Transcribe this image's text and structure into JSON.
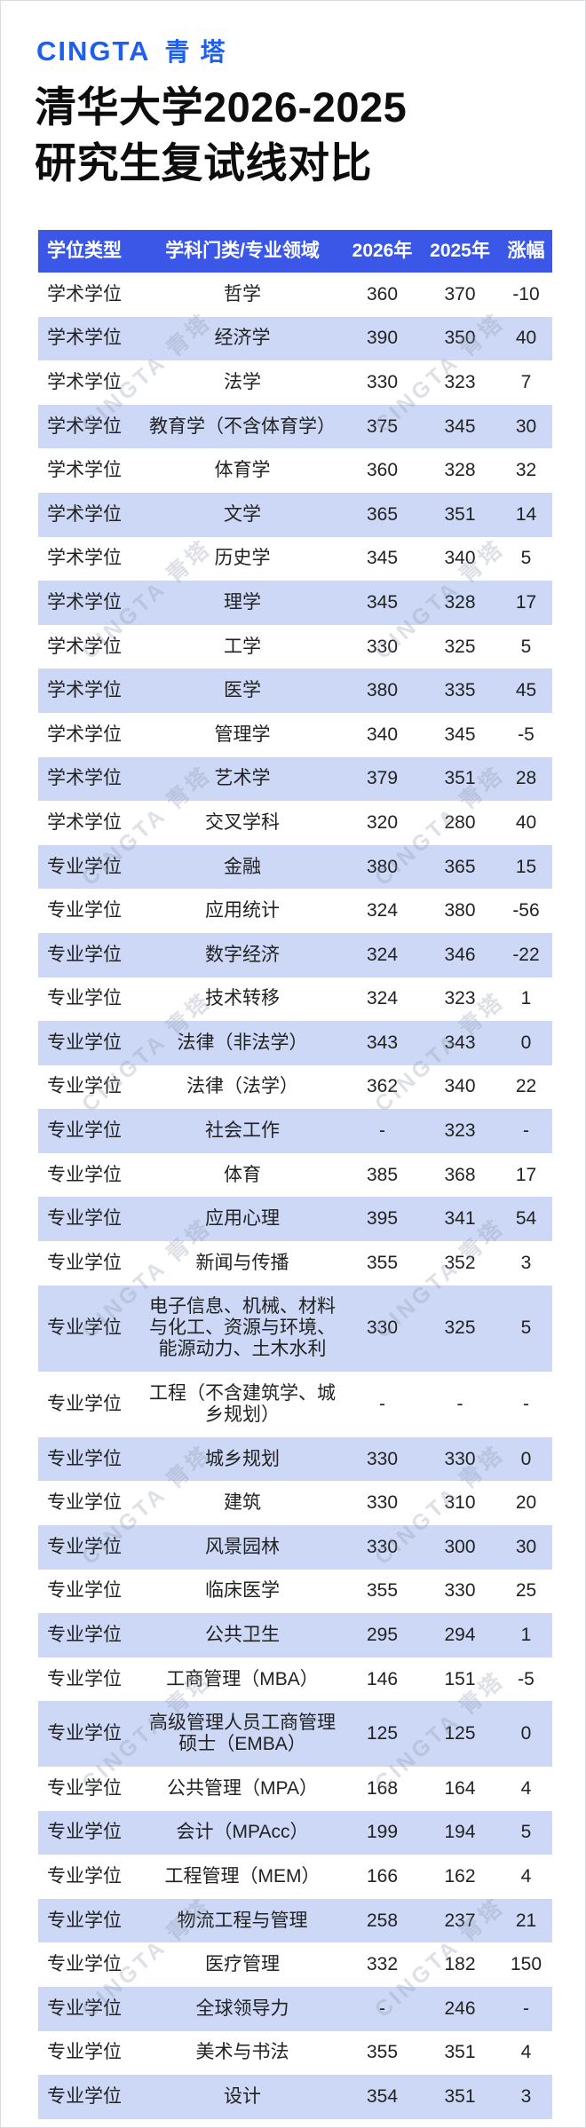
{
  "page": {
    "accent_blue": "#3b57e8",
    "stripe_blue": "#ccd8f5",
    "logo_blue": "#1d5fee",
    "background": "#ffffff"
  },
  "header": {
    "logo_en": "CINGTA",
    "logo_cn": "青塔",
    "title_line1": "清华大学2026-2025",
    "title_line2": "研究生复试线对比"
  },
  "watermark": {
    "text": "CINGTA 青塔"
  },
  "chart_data": {
    "type": "table",
    "title": "清华大学2026-2025研究生复试线对比",
    "columns": [
      "学位类型",
      "学科门类/专业领域",
      "2026年",
      "2025年",
      "涨幅"
    ],
    "rows": [
      [
        "学术学位",
        "哲学",
        "360",
        "370",
        "-10"
      ],
      [
        "学术学位",
        "经济学",
        "390",
        "350",
        "40"
      ],
      [
        "学术学位",
        "法学",
        "330",
        "323",
        "7"
      ],
      [
        "学术学位",
        "教育学（不含体育学）",
        "375",
        "345",
        "30"
      ],
      [
        "学术学位",
        "体育学",
        "360",
        "328",
        "32"
      ],
      [
        "学术学位",
        "文学",
        "365",
        "351",
        "14"
      ],
      [
        "学术学位",
        "历史学",
        "345",
        "340",
        "5"
      ],
      [
        "学术学位",
        "理学",
        "345",
        "328",
        "17"
      ],
      [
        "学术学位",
        "工学",
        "330",
        "325",
        "5"
      ],
      [
        "学术学位",
        "医学",
        "380",
        "335",
        "45"
      ],
      [
        "学术学位",
        "管理学",
        "340",
        "345",
        "-5"
      ],
      [
        "学术学位",
        "艺术学",
        "379",
        "351",
        "28"
      ],
      [
        "学术学位",
        "交叉学科",
        "320",
        "280",
        "40"
      ],
      [
        "专业学位",
        "金融",
        "380",
        "365",
        "15"
      ],
      [
        "专业学位",
        "应用统计",
        "324",
        "380",
        "-56"
      ],
      [
        "专业学位",
        "数字经济",
        "324",
        "346",
        "-22"
      ],
      [
        "专业学位",
        "技术转移",
        "324",
        "323",
        "1"
      ],
      [
        "专业学位",
        "法律（非法学）",
        "343",
        "343",
        "0"
      ],
      [
        "专业学位",
        "法律（法学）",
        "362",
        "340",
        "22"
      ],
      [
        "专业学位",
        "社会工作",
        "-",
        "323",
        "-"
      ],
      [
        "专业学位",
        "体育",
        "385",
        "368",
        "17"
      ],
      [
        "专业学位",
        "应用心理",
        "395",
        "341",
        "54"
      ],
      [
        "专业学位",
        "新闻与传播",
        "355",
        "352",
        "3"
      ],
      [
        "专业学位",
        "电子信息、机械、材料与化工、资源与环境、能源动力、土木水利",
        "330",
        "325",
        "5"
      ],
      [
        "专业学位",
        "工程（不含建筑学、城乡规划）",
        "-",
        "-",
        "-"
      ],
      [
        "专业学位",
        "城乡规划",
        "330",
        "330",
        "0"
      ],
      [
        "专业学位",
        "建筑",
        "330",
        "310",
        "20"
      ],
      [
        "专业学位",
        "风景园林",
        "330",
        "300",
        "30"
      ],
      [
        "专业学位",
        "临床医学",
        "355",
        "330",
        "25"
      ],
      [
        "专业学位",
        "公共卫生",
        "295",
        "294",
        "1"
      ],
      [
        "专业学位",
        "工商管理（MBA）",
        "146",
        "151",
        "-5"
      ],
      [
        "专业学位",
        "高级管理人员工商管理硕士（EMBA）",
        "125",
        "125",
        "0"
      ],
      [
        "专业学位",
        "公共管理（MPA）",
        "168",
        "164",
        "4"
      ],
      [
        "专业学位",
        "会计（MPAcc）",
        "199",
        "194",
        "5"
      ],
      [
        "专业学位",
        "工程管理（MEM）",
        "166",
        "162",
        "4"
      ],
      [
        "专业学位",
        "物流工程与管理",
        "258",
        "237",
        "21"
      ],
      [
        "专业学位",
        "医疗管理",
        "332",
        "182",
        "150"
      ],
      [
        "专业学位",
        "全球领导力",
        "-",
        "246",
        "-"
      ],
      [
        "专业学位",
        "美术与书法",
        "355",
        "351",
        "4"
      ],
      [
        "专业学位",
        "设计",
        "354",
        "351",
        "3"
      ]
    ]
  }
}
